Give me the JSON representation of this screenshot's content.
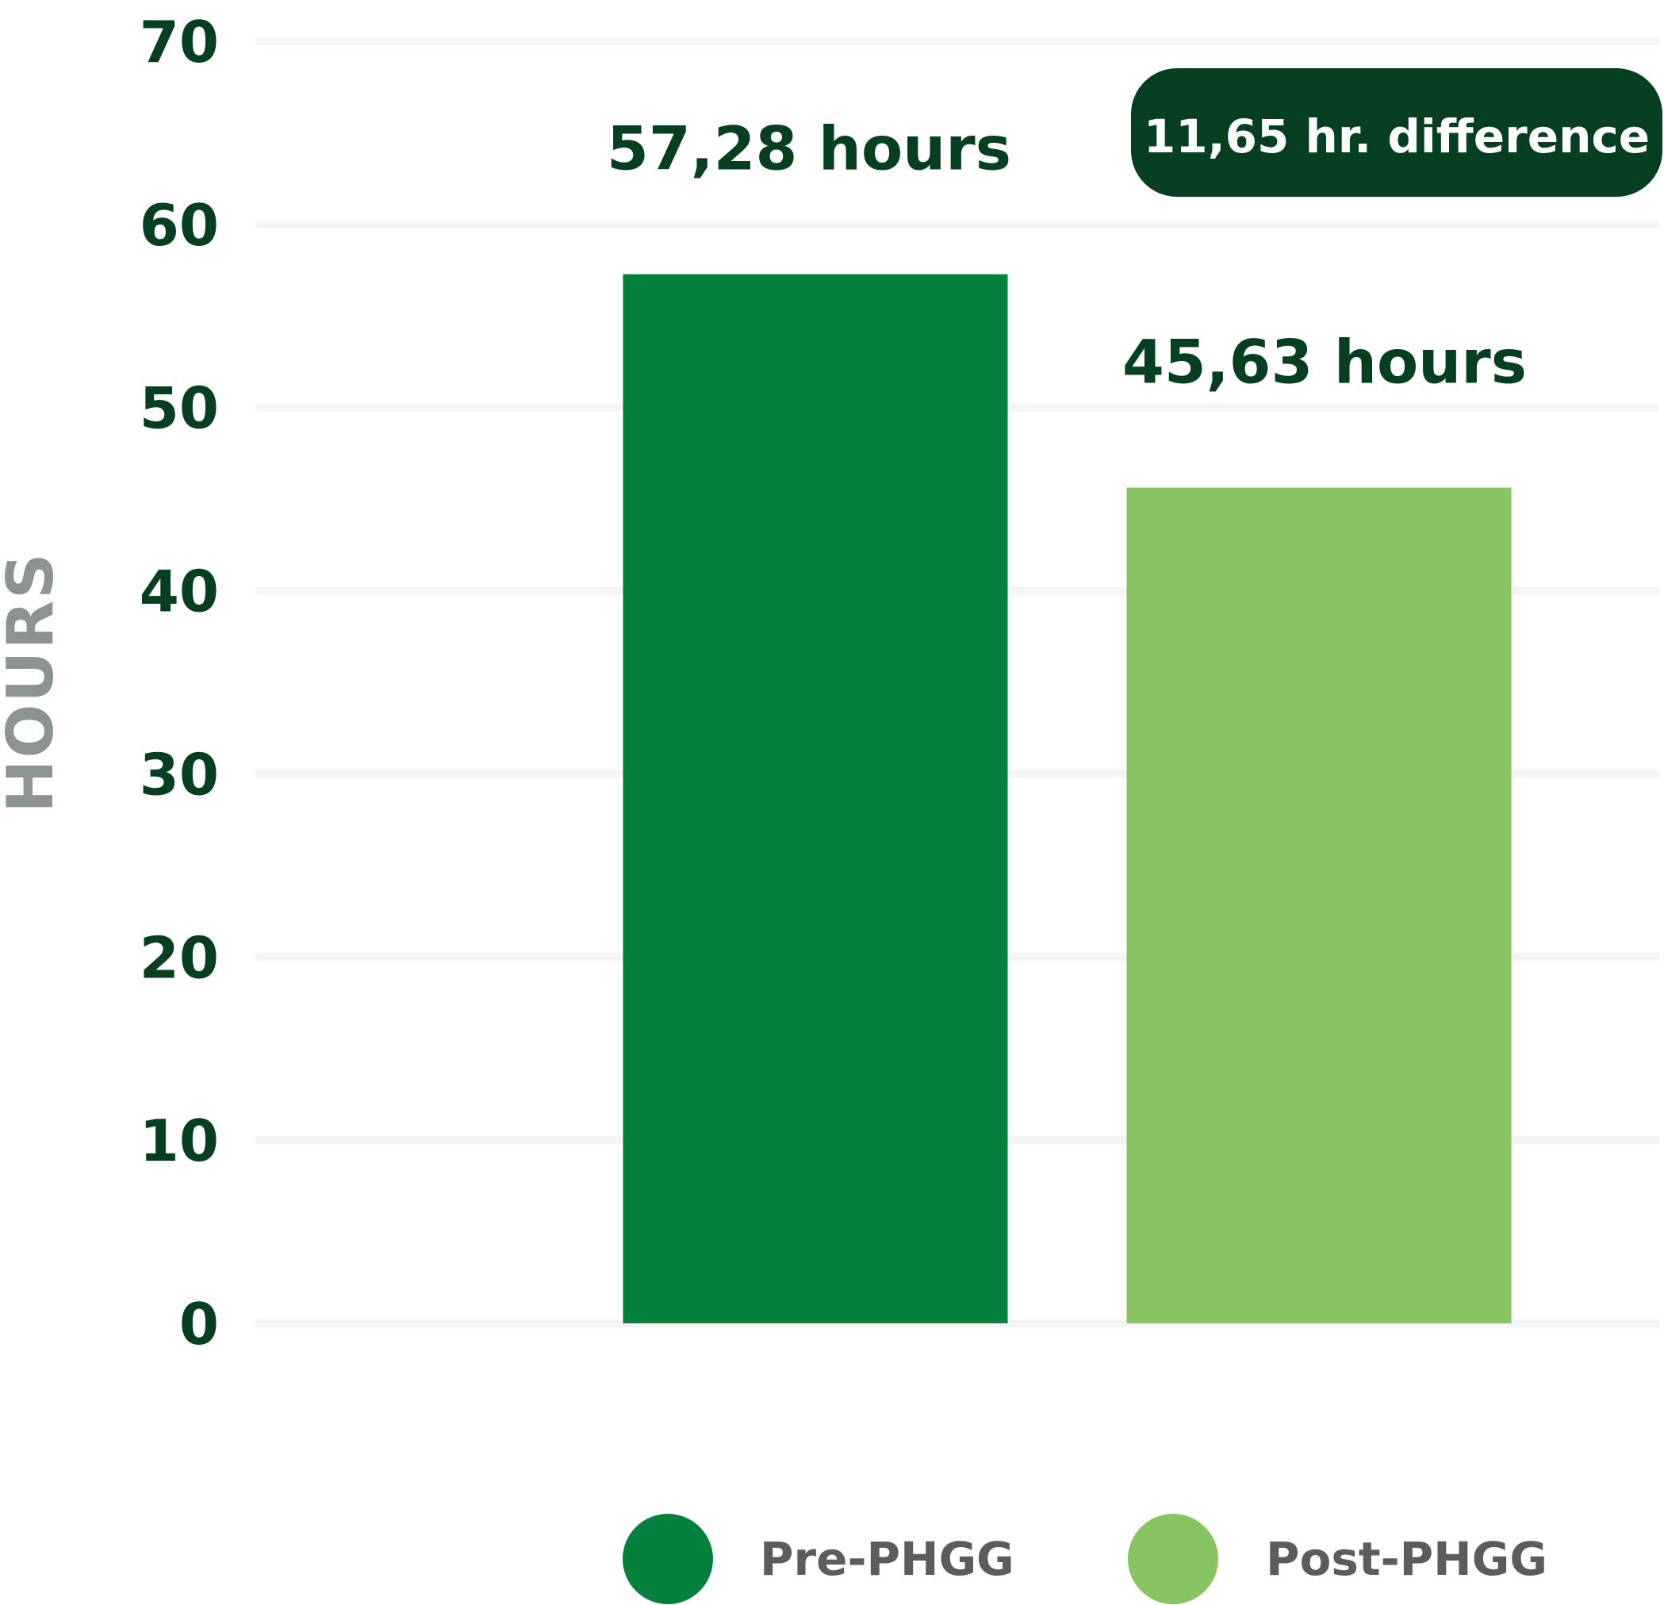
{
  "chart_data": {
    "type": "bar",
    "title": "",
    "xlabel": "",
    "ylabel": "HOURS",
    "ylim": [
      0,
      70
    ],
    "yticks": [
      0,
      10,
      20,
      30,
      40,
      50,
      60,
      70
    ],
    "grid": true,
    "legend_position": "bottom",
    "categories": [
      "Pre-PHGG",
      "Post-PHGG"
    ],
    "values": [
      57.28,
      45.63
    ],
    "value_labels": [
      "57,28 hours",
      "45,63 hours"
    ],
    "colors": [
      "#02803c",
      "#88c461"
    ],
    "annotation": "11,65 hr. difference",
    "annotation_color": "#053f1f"
  }
}
